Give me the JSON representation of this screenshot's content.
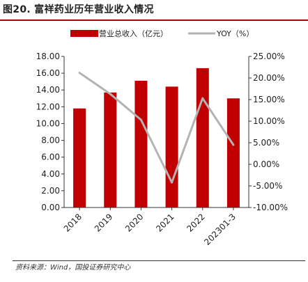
{
  "title": "图20. 富祥药业历年营业收入情况",
  "source": "资料来源：Wind，国投证券研究中心",
  "colors": {
    "bar": "#c00000",
    "line": "#b3b3b3",
    "accent": "#b00000"
  },
  "chart_data": {
    "type": "bar",
    "categories": [
      "2018",
      "2019",
      "2020",
      "2021",
      "2022",
      "202301-3"
    ],
    "series": [
      {
        "name": "营业总收入（亿元）",
        "type": "bar",
        "axis": "left",
        "values": [
          11.8,
          13.7,
          15.1,
          14.4,
          16.6,
          13.0
        ]
      },
      {
        "name": "YOY（%）",
        "type": "line",
        "axis": "right",
        "values": [
          21.2,
          16.3,
          10.3,
          -4.2,
          15.3,
          4.5
        ]
      }
    ],
    "ylim_left": [
      0,
      18
    ],
    "ylim_right": [
      -10,
      25
    ],
    "yticks_left": [
      "0.00",
      "2.00",
      "4.00",
      "6.00",
      "8.00",
      "10.00",
      "12.00",
      "14.00",
      "16.00",
      "18.00"
    ],
    "yticks_right": [
      "-10.00%",
      "-5.00%",
      "0.00%",
      "5.00%",
      "10.00%",
      "15.00%",
      "20.00%",
      "25.00%"
    ],
    "legend_position": "top",
    "grid": false
  }
}
